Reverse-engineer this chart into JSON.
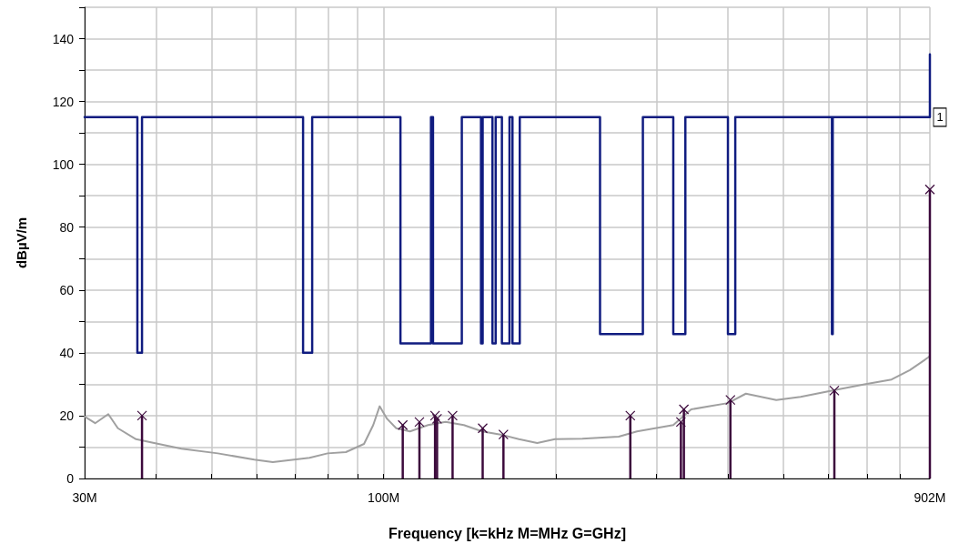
{
  "chart_data": {
    "type": "line",
    "xlabel": "Frequency [k=kHz M=MHz G=GHz]",
    "ylabel": "dBµV/m",
    "log": "x",
    "grid": true,
    "xlim": [
      30,
      902
    ],
    "ylim": [
      0,
      150
    ],
    "xticks": [
      {
        "value": 30,
        "label": "30M"
      },
      {
        "value": 40,
        "label": null
      },
      {
        "value": 50,
        "label": null
      },
      {
        "value": 60,
        "label": null
      },
      {
        "value": 70,
        "label": null
      },
      {
        "value": 80,
        "label": null
      },
      {
        "value": 90,
        "label": null
      },
      {
        "value": 100,
        "label": "100M"
      },
      {
        "value": 200,
        "label": null
      },
      {
        "value": 300,
        "label": null
      },
      {
        "value": 400,
        "label": null
      },
      {
        "value": 500,
        "label": null
      },
      {
        "value": 600,
        "label": null
      },
      {
        "value": 700,
        "label": null
      },
      {
        "value": 800,
        "label": null
      },
      {
        "value": 902,
        "label": "902M"
      }
    ],
    "yticks": [
      0,
      {
        "value": 10,
        "label": null
      },
      20,
      {
        "value": 30,
        "label": null
      },
      40,
      {
        "value": 50,
        "label": null
      },
      60,
      {
        "value": 70,
        "label": null
      },
      80,
      {
        "value": 90,
        "label": null
      },
      100,
      {
        "value": 110,
        "label": null
      },
      120,
      {
        "value": 130,
        "label": null
      },
      140,
      {
        "value": 150,
        "label": null
      }
    ],
    "annotations": [
      {
        "text": "1",
        "x": 902,
        "y": 115
      }
    ],
    "series": [
      {
        "type": "step",
        "color": "#101c80",
        "x": [
          30,
          37.1,
          37.8,
          72.3,
          75,
          107,
          121,
          122,
          137,
          148,
          149,
          155,
          157,
          161,
          166,
          168,
          173,
          239,
          284,
          321,
          337,
          400,
          412,
          608,
          610,
          902
        ],
        "values": [
          115,
          40,
          115,
          40,
          115,
          43,
          115,
          43,
          115,
          43,
          115,
          43,
          115,
          43,
          115,
          43,
          115,
          46,
          115,
          46,
          115,
          46,
          115,
          46,
          115,
          135
        ]
      },
      {
        "color": "#a0a0a0",
        "x": [
          30,
          31.3,
          33,
          34.3,
          36.9,
          39.7,
          44.3,
          51.3,
          59.4,
          64,
          74.2,
          79.8,
          85.9,
          92.4,
          95.9,
          98.4,
          101.4,
          105.2,
          111.2,
          119.6,
          128.3,
          138.1,
          148.7,
          160.1,
          172.4,
          185.6,
          199.3,
          222.6,
          257.7,
          277.3,
          298.4,
          321,
          345,
          371.8,
          400,
          430,
          486,
          536,
          621,
          693,
          773,
          832,
          895.5,
          902
        ],
        "values": [
          19.7,
          17.6,
          20.5,
          16,
          12.5,
          11.3,
          9.5,
          8,
          6,
          5.2,
          6.6,
          8,
          8.4,
          11,
          17,
          23,
          19,
          16,
          15,
          17,
          18,
          17,
          15,
          14,
          12.5,
          11.3,
          12.5,
          12.7,
          13.3,
          15,
          16,
          17,
          22,
          23,
          24,
          27,
          25,
          26,
          28.3,
          30,
          31.5,
          34.5,
          38.5,
          39
        ]
      },
      {
        "type": "lollipop",
        "color": "#3c0a3c",
        "marker": "cross",
        "x": [
          37.8,
          108,
          115.5,
          121.6,
          123,
          124,
          132,
          149,
          162,
          270,
          331,
          335,
          404,
          614,
          902
        ],
        "values": [
          20,
          17,
          18,
          null,
          20,
          19,
          20,
          16,
          14,
          20,
          18,
          22,
          25,
          28,
          92
        ]
      }
    ]
  }
}
